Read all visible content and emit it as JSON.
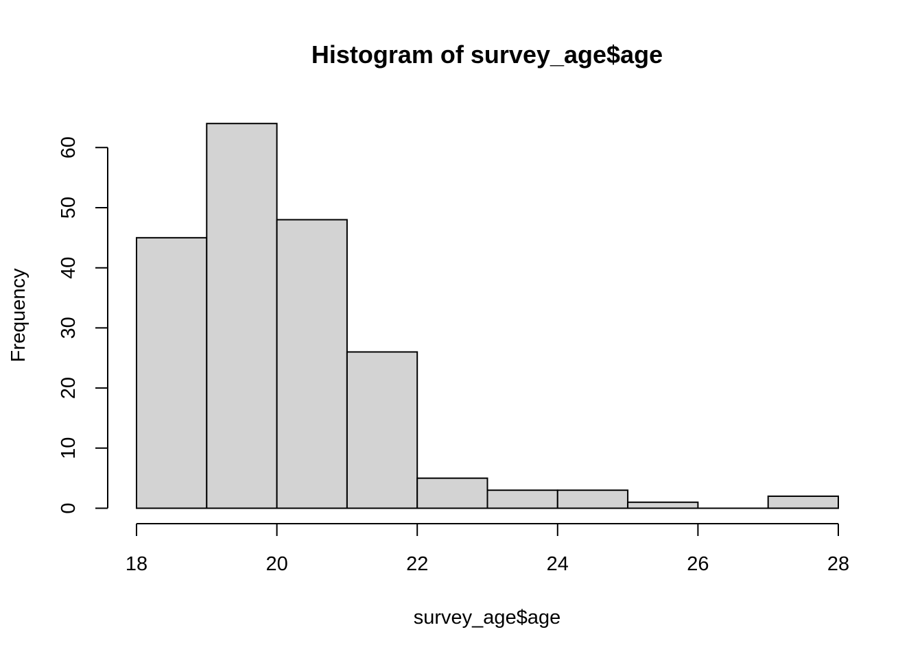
{
  "chart_data": {
    "type": "bar",
    "title": "Histogram of survey_age$age",
    "xlabel": "survey_age$age",
    "ylabel": "Frequency",
    "bins": [
      {
        "from": 18,
        "to": 19,
        "count": 45
      },
      {
        "from": 19,
        "to": 20,
        "count": 64
      },
      {
        "from": 20,
        "to": 21,
        "count": 48
      },
      {
        "from": 21,
        "to": 22,
        "count": 26
      },
      {
        "from": 22,
        "to": 23,
        "count": 5
      },
      {
        "from": 23,
        "to": 24,
        "count": 3
      },
      {
        "from": 24,
        "to": 25,
        "count": 3
      },
      {
        "from": 25,
        "to": 26,
        "count": 1
      },
      {
        "from": 26,
        "to": 27,
        "count": 0
      },
      {
        "from": 27,
        "to": 28,
        "count": 2
      }
    ],
    "x_ticks": [
      "18",
      "20",
      "22",
      "24",
      "26",
      "28"
    ],
    "y_ticks": [
      "0",
      "10",
      "20",
      "30",
      "40",
      "50",
      "60"
    ],
    "xlim": [
      18,
      28
    ],
    "ylim": [
      0,
      64
    ],
    "grid": false,
    "colors": {
      "bar_fill": "#d3d3d3",
      "bar_stroke": "#000000",
      "axis": "#000000",
      "background": "#ffffff"
    }
  }
}
